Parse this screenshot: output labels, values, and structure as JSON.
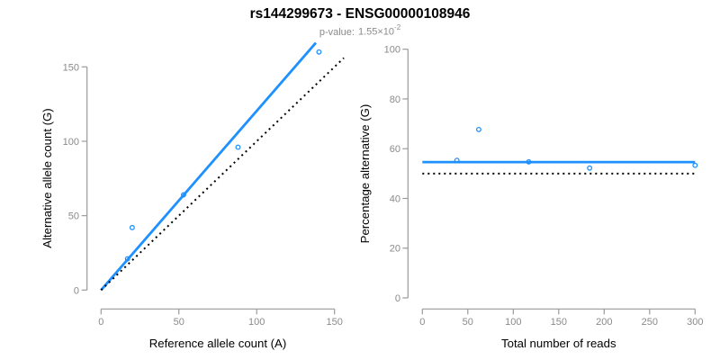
{
  "header": {
    "title": "rs144299673 - ENSG00000108946",
    "pvalue_label": "p-value:",
    "pvalue_mantissa": "1.55×10",
    "pvalue_exponent": "-2"
  },
  "colors": {
    "accent_blue": "#1E90FF",
    "axis_line": "#9a9a9a",
    "tick_label": "#8a8a8a",
    "axis_title": "#000000",
    "dotted_line": "#000000",
    "subtitle_gray": "#8a8a8a",
    "background": "#ffffff"
  },
  "chart_data": [
    {
      "type": "scatter",
      "panel": "allele-counts",
      "xlabel": "Reference allele count (A)",
      "ylabel": "Alternative allele count (G)",
      "xticks": [
        0,
        50,
        100,
        150
      ],
      "yticks": [
        0,
        50,
        100,
        150
      ],
      "xlim": [
        0,
        156
      ],
      "ylim": [
        0,
        166
      ],
      "grid": false,
      "legend": "none",
      "point_color": "#1E90FF",
      "points": [
        {
          "x": 17,
          "y": 21
        },
        {
          "x": 20,
          "y": 42
        },
        {
          "x": 53,
          "y": 64
        },
        {
          "x": 88,
          "y": 96
        },
        {
          "x": 140,
          "y": 160
        }
      ],
      "lines": [
        {
          "name": "fitted-ratio-line",
          "style": "solid",
          "color": "#1E90FF",
          "slope": 1.204,
          "intercept": 0,
          "x_range": [
            0,
            138
          ]
        },
        {
          "name": "identity-line",
          "style": "dotted",
          "color": "#000000",
          "slope": 1,
          "intercept": 0,
          "x_range": [
            0,
            156
          ]
        }
      ]
    },
    {
      "type": "scatter",
      "panel": "percentage-alternative",
      "xlabel": "Total number of reads",
      "ylabel": "Percentage alternative (G)",
      "xticks": [
        0,
        50,
        100,
        150,
        200,
        250,
        300
      ],
      "yticks": [
        0,
        20,
        40,
        60,
        80,
        100
      ],
      "xlim": [
        0,
        312
      ],
      "ylim": [
        0,
        104
      ],
      "grid": false,
      "legend": "none",
      "point_color": "#1E90FF",
      "points": [
        {
          "x": 38,
          "y": 55.3
        },
        {
          "x": 62,
          "y": 67.7
        },
        {
          "x": 117,
          "y": 54.7
        },
        {
          "x": 184,
          "y": 52.2
        },
        {
          "x": 300,
          "y": 53.3
        }
      ],
      "lines": [
        {
          "name": "mean-percentage-line",
          "style": "solid",
          "color": "#1E90FF",
          "y": 54.6,
          "x_range": [
            0,
            300
          ]
        },
        {
          "name": "expected-50-percent-line",
          "style": "dotted",
          "color": "#000000",
          "y": 50,
          "x_range": [
            0,
            300
          ]
        }
      ]
    }
  ]
}
